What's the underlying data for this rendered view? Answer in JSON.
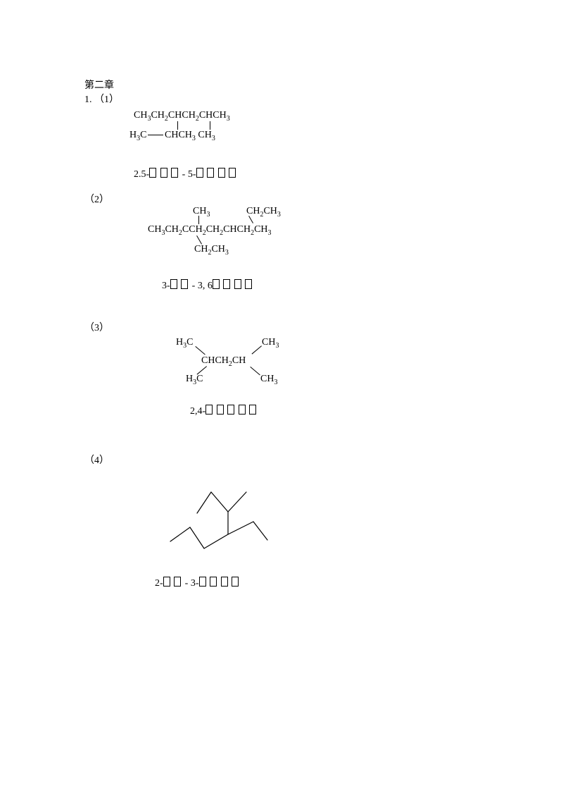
{
  "chapter_title": "第二章",
  "problem_number": "1.",
  "items": {
    "p1": {
      "label": "（1）",
      "formula_line1": "CH<sub>3</sub>CH<sub>2</sub>CHCH<sub>2</sub>CHCH<sub>3</sub>",
      "formula_line2_left": "H<sub>3</sub>C",
      "formula_line2_right": "CHCH<sub>3</sub>  CH<sub>3</sub>",
      "caption_prefix": "2.5-",
      "caption_mid": " - 5-"
    },
    "p2": {
      "label": "（2）",
      "top_left": "CH<sub>3</sub>",
      "top_right": "CH<sub>2</sub>CH<sub>3</sub>",
      "main": "CH<sub>3</sub>CH<sub>2</sub>CCH<sub>2</sub>CH<sub>2</sub>CHCH<sub>2</sub>CH<sub>3</sub>",
      "bottom": "CH<sub>2</sub>CH<sub>3</sub>",
      "caption_prefix": "3-",
      "caption_mid": " - 3, 6"
    },
    "p3": {
      "label": "（3）",
      "tl": "H<sub>3</sub>C",
      "tr": "CH<sub>3</sub>",
      "mid": "CHCH<sub>2</sub>CH",
      "bl": "H<sub>3</sub>C",
      "br": "CH<sub>3</sub>",
      "caption_prefix": "2,4-"
    },
    "p4": {
      "label": "（4）",
      "caption_prefix": "2-",
      "caption_mid": " - 3-",
      "svg": {
        "stroke": "#000000",
        "stroke_width": 1.2,
        "lines": [
          [
            60,
            60,
            80,
            30
          ],
          [
            80,
            30,
            104,
            58
          ],
          [
            104,
            58,
            130,
            30
          ],
          [
            104,
            58,
            104,
            90
          ],
          [
            104,
            90,
            140,
            72
          ],
          [
            140,
            72,
            160,
            98
          ],
          [
            104,
            90,
            70,
            110
          ],
          [
            70,
            110,
            50,
            80
          ],
          [
            50,
            80,
            22,
            100
          ]
        ]
      }
    }
  },
  "colors": {
    "text": "#000000",
    "background": "#ffffff"
  }
}
